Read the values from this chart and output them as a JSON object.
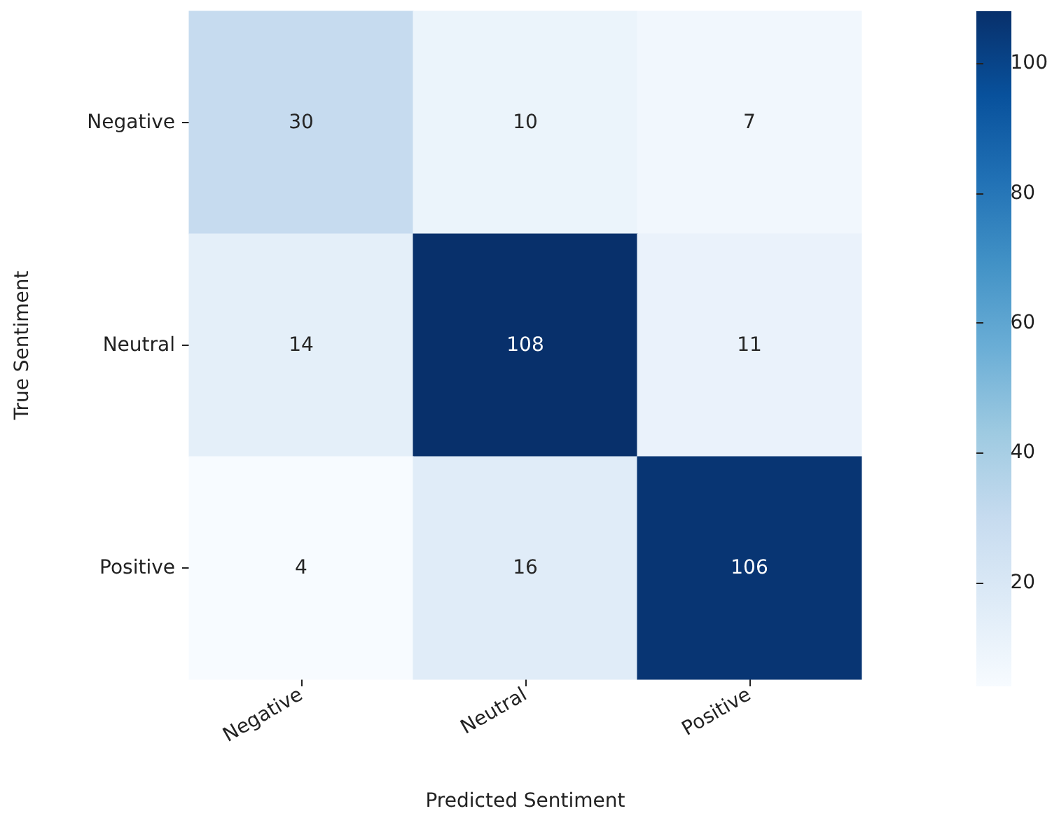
{
  "chart_data": {
    "type": "heatmap",
    "xlabel": "Predicted Sentiment",
    "ylabel": "True Sentiment",
    "categories": [
      "Negative",
      "Neutral",
      "Positive"
    ],
    "y_categories": [
      "Negative",
      "Neutral",
      "Positive"
    ],
    "cells": [
      [
        30,
        10,
        7
      ],
      [
        14,
        108,
        11
      ],
      [
        4,
        16,
        106
      ]
    ],
    "clim": [
      4,
      108
    ],
    "cticks": [
      20,
      40,
      60,
      80,
      100
    ],
    "data_labels": true
  }
}
